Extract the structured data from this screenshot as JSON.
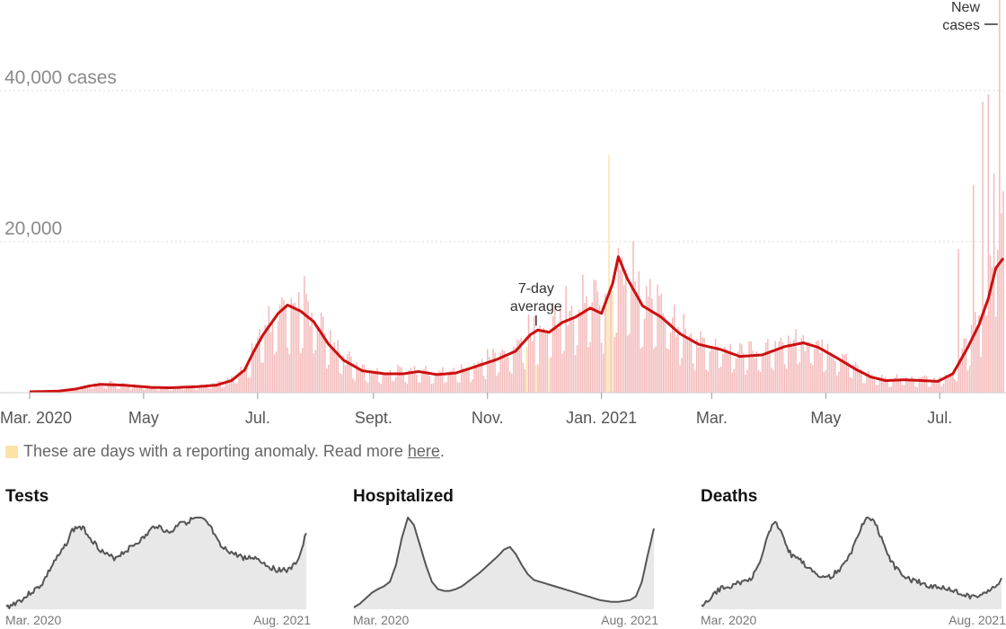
{
  "chart_data": {
    "type": "bar",
    "title": "New cases",
    "y_axis": {
      "range": [
        0,
        52000
      ],
      "tick_labels": [
        {
          "value": 40000,
          "label": "40,000 cases"
        },
        {
          "value": 20000,
          "label": "20,000"
        }
      ]
    },
    "x_axis": {
      "tick_labels": [
        {
          "day": 0,
          "label": "Mar. 2020"
        },
        {
          "day": 61,
          "label": "May"
        },
        {
          "day": 122,
          "label": "Jul."
        },
        {
          "day": 184,
          "label": "Sept."
        },
        {
          "day": 245,
          "label": "Nov."
        },
        {
          "day": 306,
          "label": "Jan. 2021"
        },
        {
          "day": 365,
          "label": "Mar."
        },
        {
          "day": 426,
          "label": "May"
        },
        {
          "day": 487,
          "label": "Jul."
        }
      ],
      "total_days": 521
    },
    "series": [
      {
        "name": "New cases",
        "kind": "daily bars",
        "color": "#f4b9b9"
      },
      {
        "name": "7-day average",
        "kind": "line",
        "color": "#cc1010"
      }
    ],
    "seven_day_average_keypoints": [
      [
        0,
        120
      ],
      [
        15,
        200
      ],
      [
        25,
        500
      ],
      [
        32,
        900
      ],
      [
        38,
        1100
      ],
      [
        50,
        1000
      ],
      [
        65,
        700
      ],
      [
        75,
        650
      ],
      [
        90,
        800
      ],
      [
        100,
        1000
      ],
      [
        108,
        1600
      ],
      [
        115,
        3000
      ],
      [
        120,
        5500
      ],
      [
        125,
        7700
      ],
      [
        133,
        10500
      ],
      [
        138,
        11600
      ],
      [
        145,
        10800
      ],
      [
        152,
        9400
      ],
      [
        160,
        6400
      ],
      [
        168,
        4300
      ],
      [
        178,
        2900
      ],
      [
        190,
        2500
      ],
      [
        200,
        2500
      ],
      [
        208,
        2800
      ],
      [
        218,
        2400
      ],
      [
        228,
        2600
      ],
      [
        238,
        3400
      ],
      [
        250,
        4400
      ],
      [
        260,
        5500
      ],
      [
        268,
        7700
      ],
      [
        272,
        8300
      ],
      [
        278,
        8000
      ],
      [
        285,
        9300
      ],
      [
        292,
        10000
      ],
      [
        300,
        11200
      ],
      [
        306,
        10500
      ],
      [
        312,
        14500
      ],
      [
        315,
        18000
      ],
      [
        320,
        15000
      ],
      [
        328,
        11500
      ],
      [
        338,
        10000
      ],
      [
        348,
        7800
      ],
      [
        358,
        6400
      ],
      [
        370,
        5700
      ],
      [
        380,
        4800
      ],
      [
        392,
        5000
      ],
      [
        404,
        6100
      ],
      [
        414,
        6600
      ],
      [
        422,
        6000
      ],
      [
        432,
        4600
      ],
      [
        442,
        3100
      ],
      [
        450,
        2100
      ],
      [
        458,
        1600
      ],
      [
        468,
        1700
      ],
      [
        478,
        1600
      ],
      [
        486,
        1500
      ],
      [
        494,
        2500
      ],
      [
        502,
        6000
      ],
      [
        508,
        9000
      ],
      [
        513,
        12500
      ],
      [
        517,
        16500
      ],
      [
        521,
        17800
      ]
    ],
    "daily_bar_peaks": [
      {
        "day": 310,
        "value": 31500
      },
      {
        "day": 497,
        "value": 19000
      },
      {
        "day": 505,
        "value": 27500
      },
      {
        "day": 510,
        "value": 38500
      },
      {
        "day": 513,
        "value": 39500
      },
      {
        "day": 516,
        "value": 29000
      },
      {
        "day": 519,
        "value": 52000
      }
    ],
    "anomaly_days": [
      266,
      271,
      278,
      309,
      310,
      312
    ],
    "annotations": [
      {
        "label_line1": "7-day",
        "label_line2": "average",
        "points_to_day": 271
      },
      {
        "label_line1": "New",
        "label_line2": "cases",
        "points_to_day": 519
      }
    ],
    "legend_text": "These are days with a reporting anomaly. Read more ",
    "legend_link": "here",
    "legend_end": ".",
    "anomaly_color": "#fde2a7",
    "small_multiples": [
      {
        "title": "Tests",
        "start_label": "Mar. 2020",
        "end_label": "Aug. 2021",
        "values": [
          2,
          5,
          9,
          12,
          18,
          22,
          28,
          40,
          52,
          60,
          72,
          86,
          90,
          87,
          78,
          70,
          63,
          58,
          56,
          60,
          64,
          69,
          74,
          78,
          86,
          92,
          88,
          83,
          87,
          97,
          95,
          98,
          100,
          96,
          90,
          76,
          66,
          64,
          60,
          58,
          55,
          57,
          55,
          50,
          46,
          43,
          44,
          42,
          48,
          60,
          83
        ]
      },
      {
        "title": "Hospitalized",
        "start_label": "Mar. 2020",
        "end_label": "Aug. 2021",
        "values": [
          2,
          6,
          12,
          18,
          22,
          25,
          30,
          48,
          78,
          100,
          92,
          70,
          48,
          30,
          22,
          20,
          20,
          22,
          25,
          30,
          35,
          40,
          46,
          52,
          58,
          65,
          68,
          60,
          48,
          38,
          32,
          30,
          28,
          26,
          24,
          22,
          20,
          18,
          16,
          14,
          12,
          10,
          9,
          8,
          8,
          9,
          10,
          14,
          30,
          60,
          88
        ]
      },
      {
        "title": "Deaths",
        "start_label": "Mar. 2020",
        "end_label": "Aug. 2021",
        "values": [
          3,
          8,
          15,
          22,
          24,
          26,
          28,
          30,
          32,
          40,
          55,
          80,
          95,
          90,
          72,
          58,
          55,
          50,
          46,
          40,
          36,
          34,
          38,
          44,
          50,
          62,
          80,
          95,
          100,
          92,
          78,
          60,
          48,
          40,
          36,
          32,
          30,
          28,
          26,
          24,
          24,
          22,
          20,
          18,
          16,
          14,
          15,
          16,
          20,
          26,
          34
        ]
      }
    ]
  }
}
